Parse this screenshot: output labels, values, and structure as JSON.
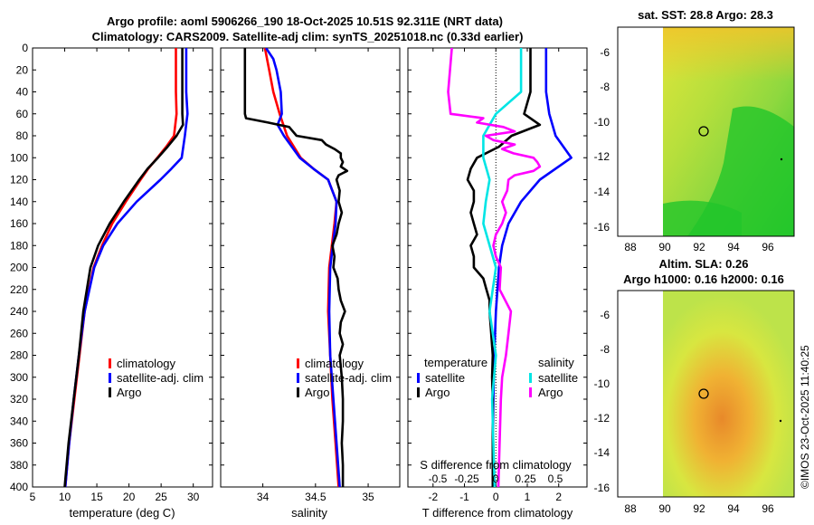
{
  "header": {
    "line1": "Argo profile: aoml 5906266_190 18-Oct-2025 10.51S 92.311E (NRT data)",
    "line2": "Climatology: CARS2009. Satellite-adj clim: synTS_20251018.nc (0.33d earlier)"
  },
  "colors": {
    "climatology": "#ff0000",
    "satellite": "#0000ff",
    "argo": "#000000",
    "sat_salinity": "#00e5e5",
    "argo_salinity": "#ff00ff"
  },
  "depth_axis": {
    "ticks": [
      0,
      20,
      40,
      60,
      80,
      100,
      120,
      140,
      160,
      180,
      200,
      220,
      240,
      260,
      280,
      300,
      320,
      340,
      360,
      380,
      400
    ],
    "ylim": [
      0,
      400
    ]
  },
  "chart_data": [
    {
      "type": "line",
      "panel": "temperature",
      "xlabel": "temperature (deg C)",
      "xlim": [
        5,
        33
      ],
      "xticks": [
        5,
        10,
        15,
        20,
        25,
        30
      ],
      "legend": [
        "climatology",
        "satellite-adj. clim",
        "Argo"
      ],
      "series": [
        {
          "name": "climatology",
          "color": "#ff0000",
          "depth": [
            0,
            40,
            60,
            80,
            90,
            100,
            110,
            120,
            140,
            160,
            180,
            200,
            240,
            280,
            320,
            360,
            400
          ],
          "values": [
            27.3,
            27.3,
            27.4,
            27.0,
            25.8,
            24.4,
            23.0,
            21.8,
            19.5,
            17.4,
            15.8,
            14.5,
            13.1,
            12.3,
            11.5,
            10.7,
            10.1
          ]
        },
        {
          "name": "satellite-adj. clim",
          "color": "#0000ff",
          "depth": [
            0,
            40,
            60,
            80,
            100,
            110,
            120,
            140,
            160,
            180,
            200,
            240,
            280,
            320,
            360,
            400
          ],
          "values": [
            28.9,
            28.9,
            29.1,
            28.7,
            28.2,
            26.6,
            24.9,
            21.2,
            18.2,
            16.0,
            14.6,
            13.1,
            12.2,
            11.4,
            10.7,
            10.1
          ]
        },
        {
          "name": "Argo",
          "color": "#000000",
          "depth": [
            0,
            40,
            60,
            70,
            80,
            90,
            100,
            110,
            120,
            140,
            160,
            180,
            200,
            240,
            280,
            320,
            360,
            400
          ],
          "values": [
            28.3,
            28.3,
            28.3,
            28.4,
            27.4,
            26.0,
            24.5,
            22.9,
            21.6,
            19.2,
            17.0,
            15.2,
            14.0,
            12.9,
            12.2,
            11.4,
            10.6,
            10.0
          ]
        }
      ]
    },
    {
      "type": "line",
      "panel": "salinity",
      "xlabel": "salinity",
      "xlim": [
        33.6,
        35.3
      ],
      "xticks": [
        34,
        34.5,
        35
      ],
      "legend": [
        "climatology",
        "satellite-adj. clim",
        "Argo"
      ],
      "series": [
        {
          "name": "climatology",
          "color": "#ff0000",
          "depth": [
            0,
            20,
            40,
            60,
            80,
            100,
            110,
            120,
            140,
            160,
            200,
            240,
            280,
            320,
            360,
            400
          ],
          "values": [
            34.02,
            34.06,
            34.1,
            34.16,
            34.23,
            34.36,
            34.48,
            34.62,
            34.7,
            34.68,
            34.63,
            34.62,
            34.64,
            34.66,
            34.69,
            34.72
          ]
        },
        {
          "name": "satellite-adj. clim",
          "color": "#0000ff",
          "depth": [
            0,
            10,
            20,
            40,
            60,
            70,
            80,
            100,
            110,
            120,
            140,
            160,
            200,
            240,
            280,
            320,
            360,
            400
          ],
          "values": [
            34.03,
            34.1,
            34.13,
            34.17,
            34.18,
            34.14,
            34.2,
            34.35,
            34.48,
            34.62,
            34.7,
            34.69,
            34.64,
            34.63,
            34.64,
            34.67,
            34.7,
            34.73
          ]
        },
        {
          "name": "Argo",
          "color": "#000000",
          "depth": [
            0,
            20,
            40,
            60,
            64,
            68,
            72,
            80,
            84,
            88,
            92,
            96,
            100,
            104,
            108,
            112,
            116,
            120,
            130,
            140,
            150,
            160,
            170,
            180,
            190,
            200,
            210,
            220,
            230,
            240,
            250,
            260,
            270,
            280,
            300,
            320,
            340,
            360,
            380,
            400
          ],
          "values": [
            33.83,
            33.83,
            33.83,
            33.83,
            33.84,
            34.05,
            34.25,
            34.32,
            34.56,
            34.6,
            34.68,
            34.74,
            34.74,
            34.76,
            34.74,
            34.8,
            34.72,
            34.7,
            34.73,
            34.72,
            34.75,
            34.72,
            34.7,
            34.66,
            34.68,
            34.67,
            34.71,
            34.72,
            34.74,
            34.78,
            34.74,
            34.73,
            34.76,
            34.73,
            34.75,
            34.76,
            34.76,
            34.75,
            34.76,
            34.76
          ]
        }
      ]
    },
    {
      "type": "line",
      "panel": "difference",
      "xlabel": "T difference from climatology",
      "xlabel_top": "S difference from climatology",
      "xlim": [
        -2.8,
        2.9
      ],
      "xticks": [
        -2,
        -1,
        0,
        1,
        2
      ],
      "s_ticks": [
        "-0.5",
        "-0.25",
        "0",
        "0.25",
        "0.5"
      ],
      "legend_left_title": "temperature",
      "legend_right_title": "salinity",
      "legend_left": [
        "satellite",
        "Argo"
      ],
      "legend_right": [
        "satellite",
        "Argo"
      ],
      "series": [
        {
          "name": "temperature satellite",
          "color": "#0000ff",
          "depth": [
            0,
            40,
            60,
            80,
            100,
            120,
            140,
            160,
            180,
            200,
            240,
            280,
            320,
            360,
            400
          ],
          "values": [
            1.6,
            1.6,
            1.7,
            1.9,
            2.4,
            1.4,
            0.8,
            0.4,
            0.2,
            0.1,
            0.0,
            -0.05,
            -0.08,
            -0.1,
            -0.1
          ]
        },
        {
          "name": "temperature Argo",
          "color": "#000000",
          "depth": [
            0,
            40,
            60,
            70,
            80,
            90,
            100,
            110,
            120,
            130,
            140,
            150,
            160,
            170,
            180,
            190,
            200,
            210,
            220,
            230,
            240,
            260,
            280,
            300,
            320,
            360,
            400
          ],
          "values": [
            1.1,
            1.1,
            0.9,
            1.4,
            0.5,
            0.1,
            -0.6,
            -0.8,
            -0.9,
            -0.7,
            -0.7,
            -0.8,
            -0.7,
            -0.6,
            -0.8,
            -0.7,
            -0.7,
            -0.4,
            -0.3,
            -0.2,
            -0.2,
            -0.15,
            -0.1,
            -0.12,
            -0.1,
            -0.1,
            -0.1
          ]
        },
        {
          "name": "salinity satellite",
          "color": "#00e5e5",
          "depth": [
            0,
            40,
            60,
            80,
            100,
            120,
            140,
            160,
            200,
            240,
            280,
            320,
            360,
            400
          ],
          "values": [
            0.2,
            0.2,
            0.0,
            -0.1,
            -0.1,
            -0.05,
            -0.08,
            -0.1,
            0.0,
            -0.05,
            0.0,
            -0.03,
            -0.02,
            -0.01
          ]
        },
        {
          "name": "salinity Argo",
          "color": "#ff00ff",
          "depth": [
            0,
            40,
            60,
            64,
            68,
            72,
            76,
            80,
            84,
            88,
            92,
            96,
            100,
            104,
            108,
            112,
            116,
            120,
            130,
            140,
            150,
            160,
            170,
            180,
            190,
            200,
            220,
            240,
            260,
            280,
            300,
            320,
            360,
            400
          ],
          "values": [
            -0.35,
            -0.38,
            -0.36,
            -0.1,
            -0.15,
            0.06,
            0.15,
            -0.08,
            -0.02,
            0.15,
            0.05,
            0.14,
            0.3,
            0.33,
            0.35,
            0.3,
            0.15,
            0.1,
            0.09,
            0.05,
            0.08,
            0.05,
            0.0,
            -0.02,
            0.0,
            0.04,
            0.03,
            0.12,
            0.1,
            0.08,
            0.05,
            0.04,
            0.03,
            0.02
          ]
        }
      ]
    }
  ],
  "maps": [
    {
      "title": "sat. SST: 28.8 Argo: 28.3",
      "title2": "",
      "xticks": [
        "88",
        "90",
        "92",
        "94",
        "96"
      ],
      "yticks": [
        "-6",
        "-8",
        "-10",
        "-12",
        "-14",
        "-16"
      ]
    },
    {
      "title": "Altim. SLA: 0.26",
      "title2": "Argo h1000: 0.16 h2000: 0.16",
      "xticks": [
        "88",
        "90",
        "92",
        "94",
        "96"
      ],
      "yticks": [
        "-6",
        "-8",
        "-10",
        "-12",
        "-14",
        "-16"
      ]
    }
  ],
  "credit": "©IMOS 23-Oct-2025 11:40:25"
}
